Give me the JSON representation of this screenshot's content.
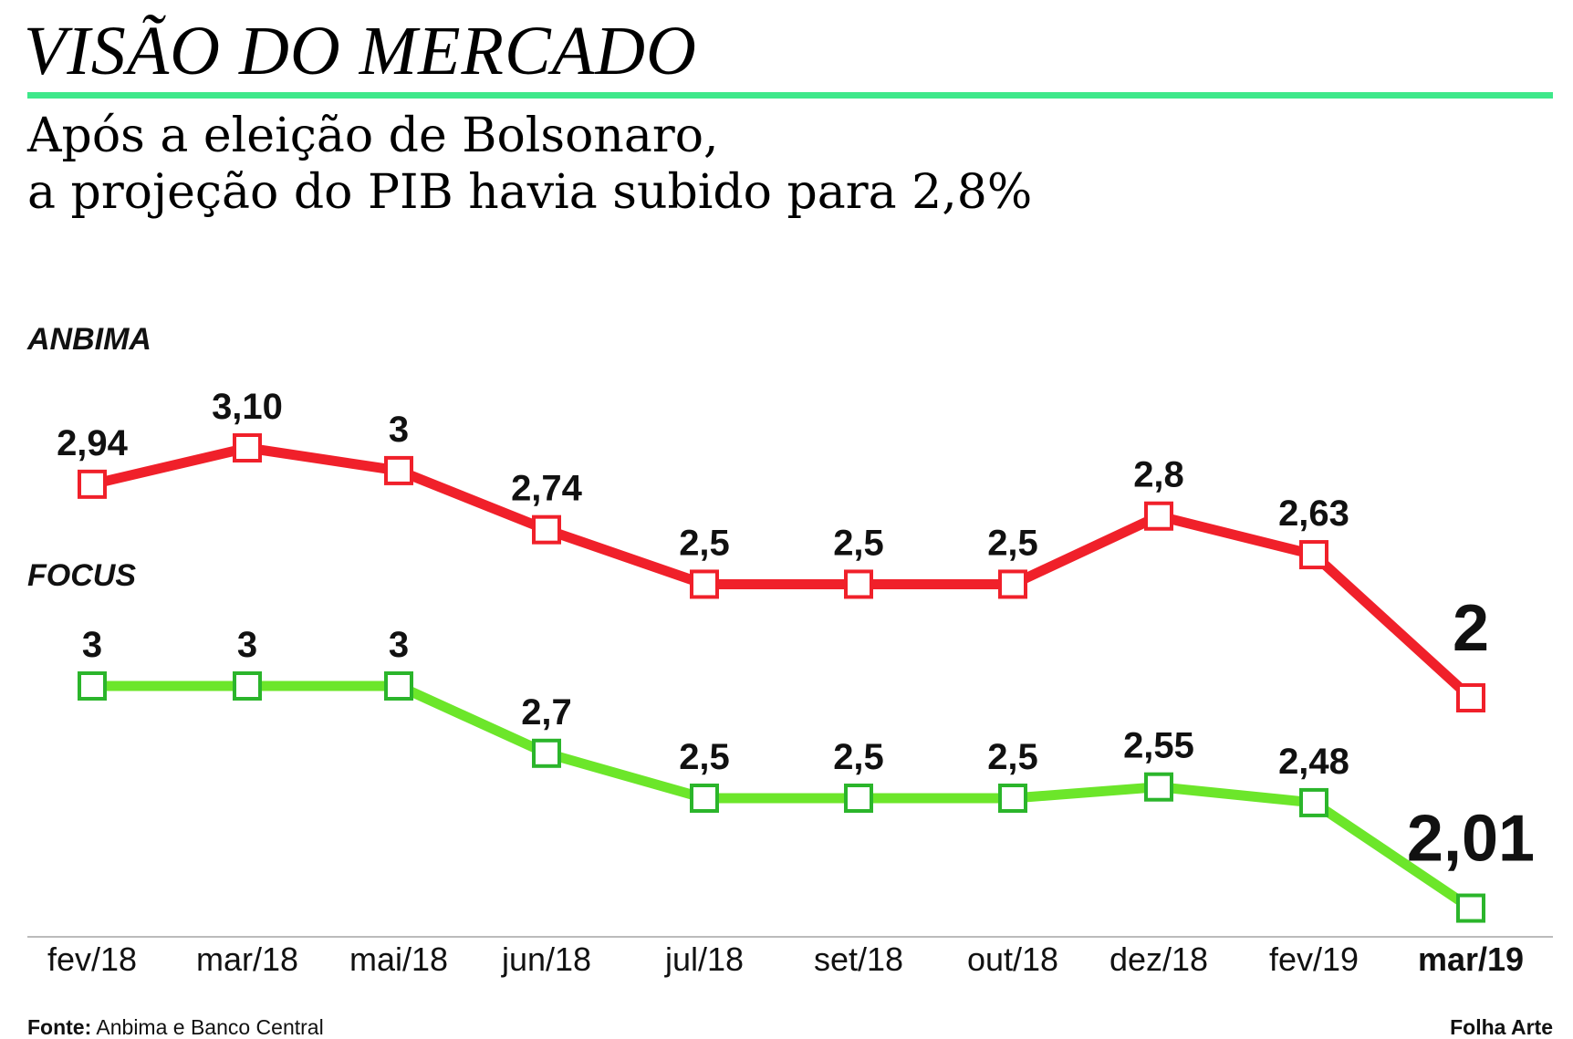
{
  "header": {
    "kicker": "VISÃO DO MERCADO",
    "headline_line1": "Após a eleição de Bolsonaro,",
    "headline_line2": "a projeção do PIB havia subido para 2,8%"
  },
  "footer": {
    "source_label": "Fonte:",
    "source_text": "Anbima e Banco Central",
    "credit": "Folha Arte"
  },
  "colors": {
    "accent_rule": "#3ee88a",
    "anbima": "#f0202a",
    "focus": "#6ce62a",
    "focus_marker": "#2bb52b",
    "axis": "#bbbbbb"
  },
  "chart_data": {
    "type": "line",
    "title": "Após a eleição de Bolsonaro, a projeção do PIB havia subido para 2,8%",
    "categories": [
      "fev/18",
      "mar/18",
      "mai/18",
      "jun/18",
      "jul/18",
      "set/18",
      "out/18",
      "dez/18",
      "fev/19",
      "mar/19"
    ],
    "highlight_category": "mar/19",
    "grid": false,
    "legend": "none",
    "series": [
      {
        "name": "ANBIMA",
        "values": [
          2.94,
          3.1,
          3,
          2.74,
          2.5,
          2.5,
          2.5,
          2.8,
          2.63,
          2
        ],
        "labels": [
          "2,94",
          "3,10",
          "3",
          "2,74",
          "2,5",
          "2,5",
          "2,5",
          "2,8",
          "2,63",
          "2"
        ]
      },
      {
        "name": "FOCUS",
        "values": [
          3,
          3,
          3,
          2.7,
          2.5,
          2.5,
          2.5,
          2.55,
          2.48,
          2.01
        ],
        "labels": [
          "3",
          "3",
          "3",
          "2,7",
          "2,5",
          "2,5",
          "2,5",
          "2,55",
          "2,48",
          "2,01"
        ]
      }
    ]
  }
}
